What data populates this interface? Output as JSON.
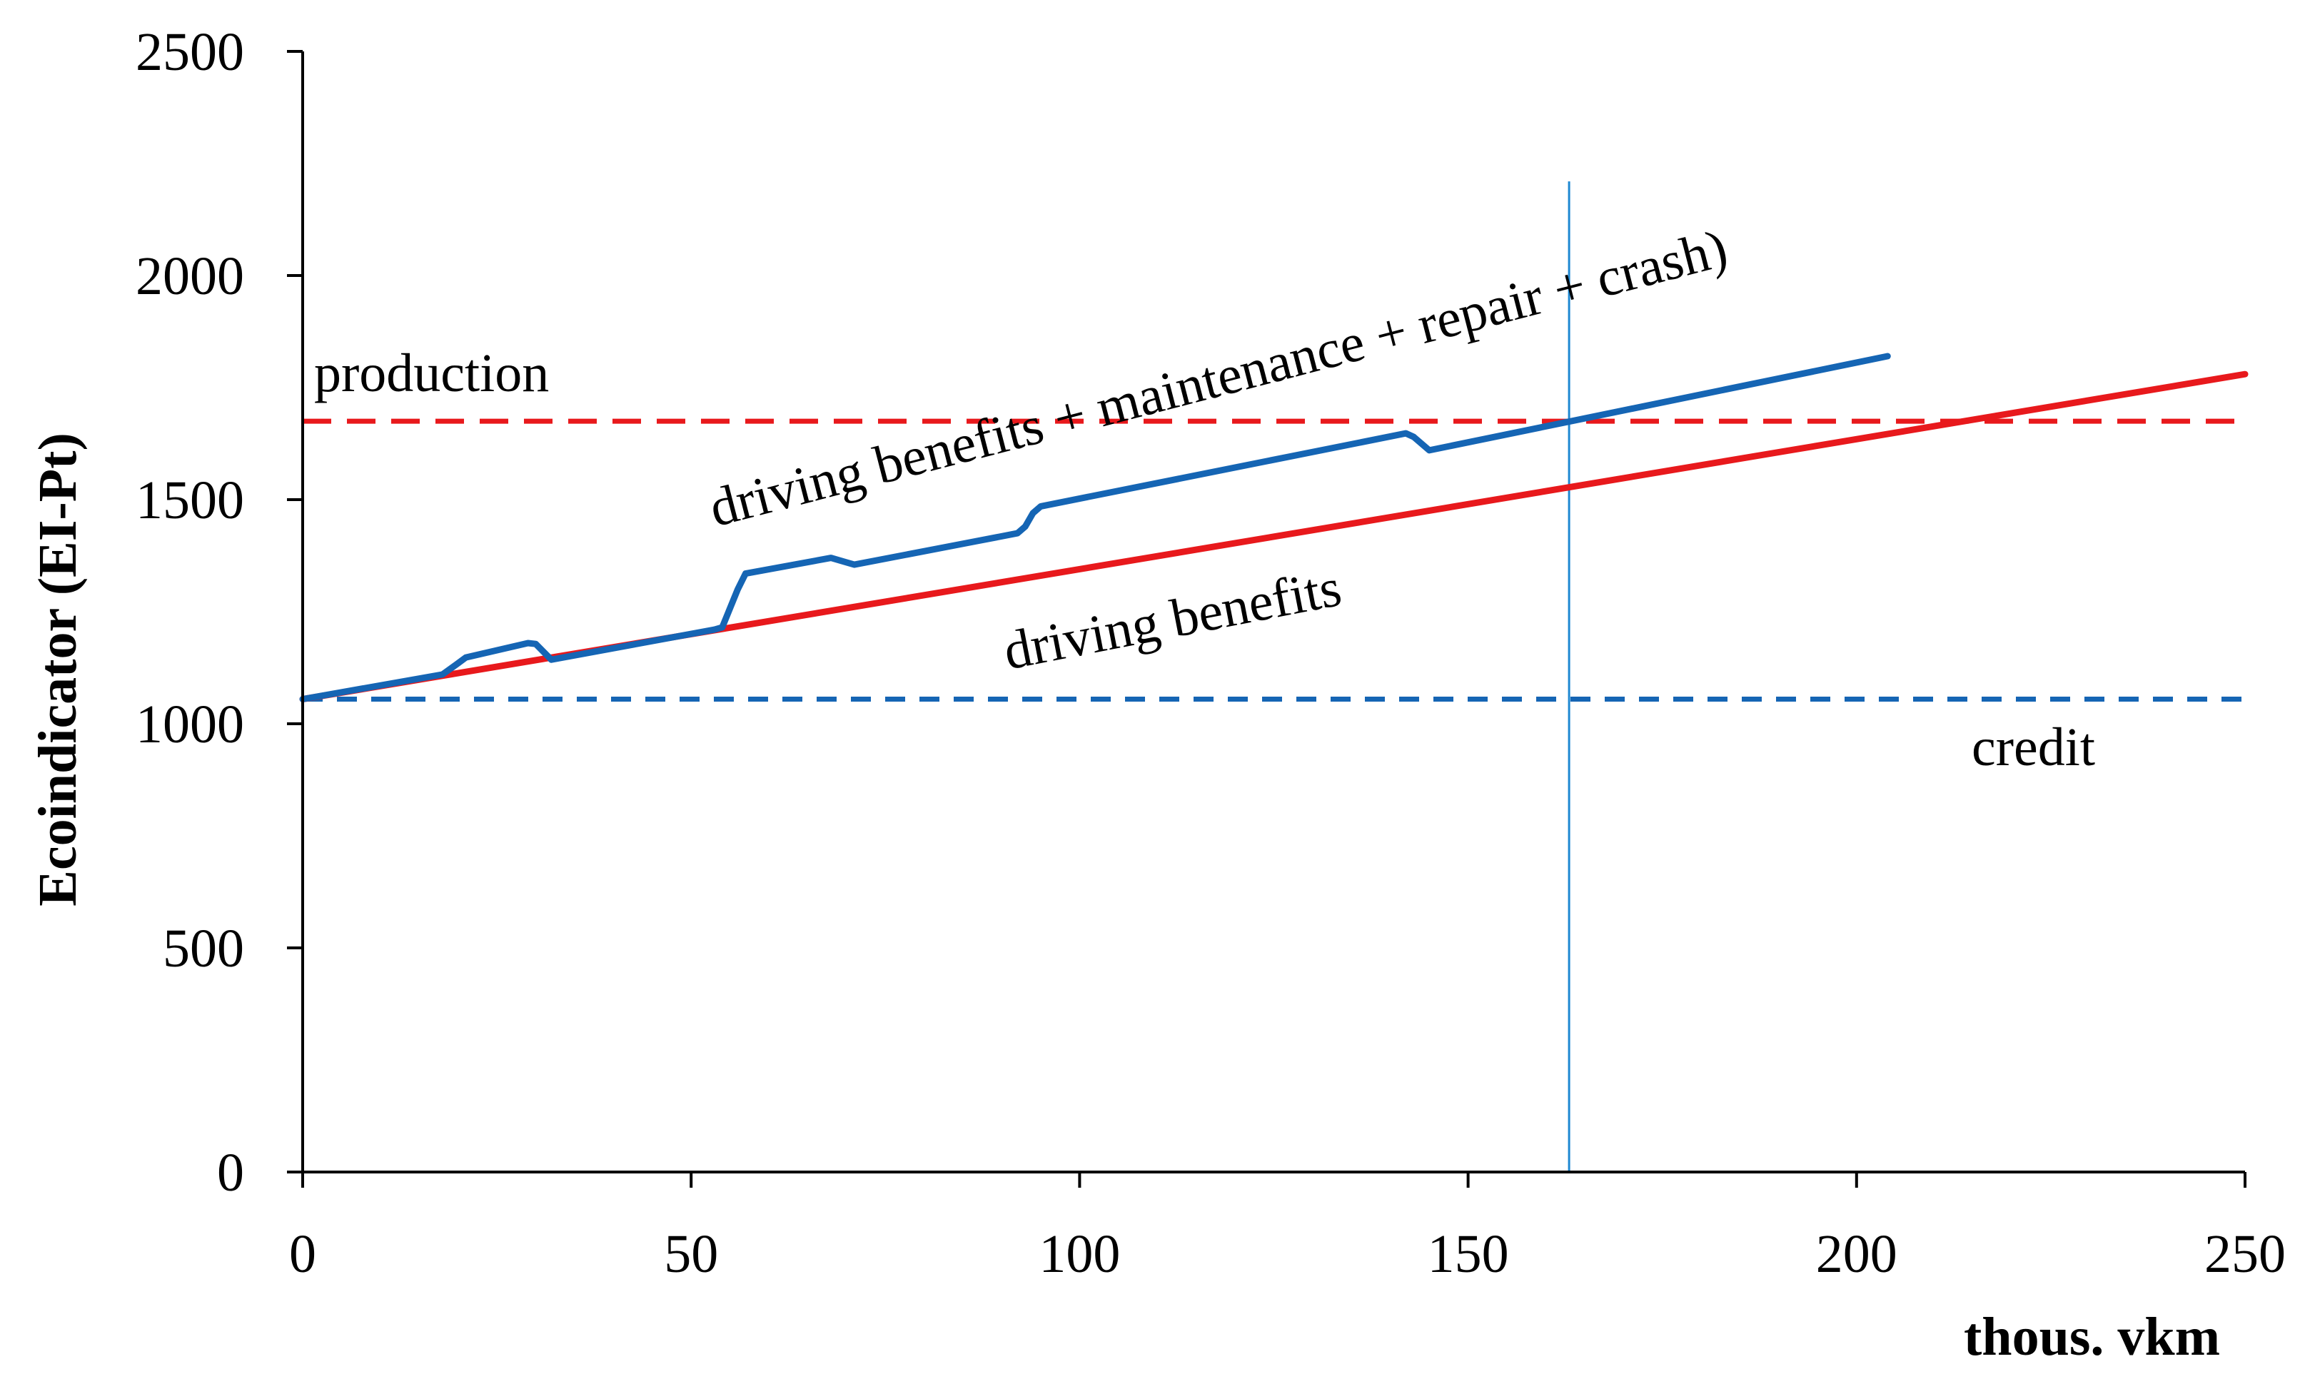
{
  "chart_data": {
    "type": "line",
    "title": "",
    "xlabel": "thous. vkm",
    "ylabel": "Ecoindicator (EI-Pt)",
    "xlim": [
      0,
      250
    ],
    "ylim": [
      0,
      2500
    ],
    "xticks": [
      0,
      50,
      100,
      150,
      200,
      250
    ],
    "yticks": [
      0,
      500,
      1000,
      1500,
      2000,
      2500
    ],
    "grid": false,
    "legend": "none",
    "series": [
      {
        "name": "driving benefits",
        "style": "solid",
        "color": "#e8191c",
        "x": [
          0,
          250
        ],
        "y": [
          1055,
          1780
        ]
      },
      {
        "name": "driving benefits + maintenance + repair + crash)",
        "style": "solid",
        "color": "#1565b4",
        "x": [
          0,
          18,
          20,
          21,
          29,
          30,
          32,
          53,
          54,
          56,
          57,
          68,
          70,
          71,
          92,
          93,
          94,
          95,
          142,
          143,
          145,
          204
        ],
        "y": [
          1055,
          1110,
          1135,
          1148,
          1180,
          1178,
          1143,
          1210,
          1215,
          1300,
          1335,
          1370,
          1360,
          1355,
          1425,
          1440,
          1470,
          1485,
          1648,
          1640,
          1610,
          1820
        ]
      },
      {
        "name": "production",
        "style": "dashed",
        "color": "#e8191c",
        "x": [
          0,
          250
        ],
        "y": [
          1675,
          1675
        ]
      },
      {
        "name": "credit",
        "style": "dashed",
        "color": "#1565b4",
        "x": [
          0,
          250
        ],
        "y": [
          1055,
          1055
        ]
      }
    ],
    "reference_line": {
      "axis": "x",
      "value": 163,
      "y_top": 2210,
      "color": "#1e88d2"
    },
    "annotations": {
      "production": "production",
      "credit": "credit",
      "driving_benefits": "driving benefits",
      "driving_benefits_plus": "driving benefits + maintenance + repair + crash)"
    }
  }
}
